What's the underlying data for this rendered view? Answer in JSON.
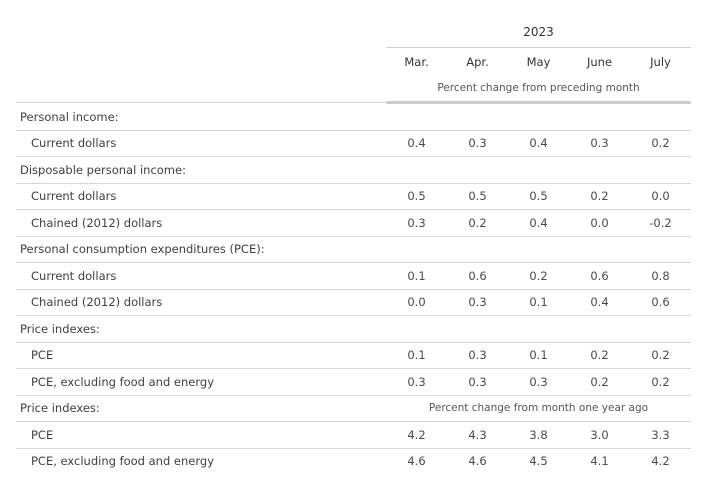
{
  "table": {
    "year": "2023",
    "months": [
      "Mar.",
      "Apr.",
      "May",
      "June",
      "July"
    ],
    "unit_label": "Percent change from preceding month",
    "second_unit_label": "Percent change from month one year ago",
    "rows": [
      {
        "label": "Personal income:"
      },
      {
        "label": "Current dollars",
        "values": [
          "0.4",
          "0.3",
          "0.4",
          "0.3",
          "0.2"
        ]
      },
      {
        "label": "Disposable personal income:"
      },
      {
        "label": "Current dollars",
        "values": [
          "0.5",
          "0.5",
          "0.5",
          "0.2",
          "0.0"
        ]
      },
      {
        "label": "Chained (2012) dollars",
        "values": [
          "0.3",
          "0.2",
          "0.4",
          "0.0",
          "-0.2"
        ]
      },
      {
        "label": "Personal consumption expenditures (PCE):"
      },
      {
        "label": "Current dollars",
        "values": [
          "0.1",
          "0.6",
          "0.2",
          "0.6",
          "0.8"
        ]
      },
      {
        "label": "Chained (2012) dollars",
        "values": [
          "0.0",
          "0.3",
          "0.1",
          "0.4",
          "0.6"
        ]
      },
      {
        "label": "Price indexes:"
      },
      {
        "label": "PCE",
        "values": [
          "0.1",
          "0.3",
          "0.1",
          "0.2",
          "0.2"
        ]
      },
      {
        "label": "PCE, excluding food and energy",
        "values": [
          "0.3",
          "0.3",
          "0.3",
          "0.2",
          "0.2"
        ]
      },
      {
        "label": "Price indexes:"
      },
      {
        "label": "PCE",
        "values": [
          "4.2",
          "4.3",
          "3.8",
          "3.0",
          "3.3"
        ]
      },
      {
        "label": "PCE, excluding food and energy",
        "values": [
          "4.6",
          "4.6",
          "4.5",
          "4.1",
          "4.2"
        ]
      }
    ]
  }
}
